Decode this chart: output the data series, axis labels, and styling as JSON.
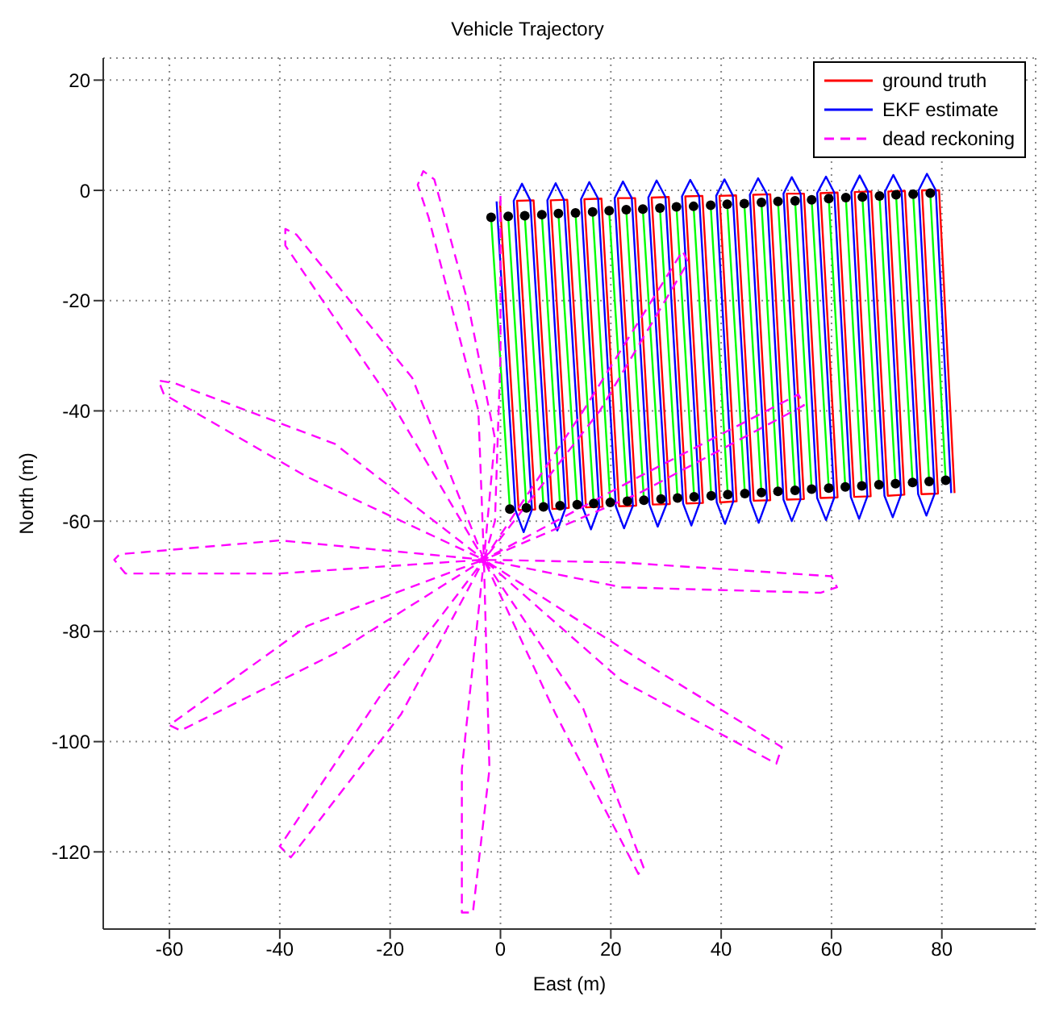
{
  "chart_data": {
    "type": "line",
    "title": "Vehicle Trajectory",
    "xlabel": "East (m)",
    "ylabel": "North (m)",
    "xlim": [
      -72,
      97
    ],
    "ylim": [
      -134,
      24
    ],
    "xticks": [
      -60,
      -40,
      -20,
      0,
      20,
      40,
      60,
      80
    ],
    "yticks": [
      -120,
      -100,
      -80,
      -60,
      -40,
      -20,
      0,
      20
    ],
    "grid": true,
    "legend": "top right",
    "marker": "none",
    "series": [
      {
        "color": "#00ff00",
        "x": [
          -1.7,
          1.7,
          null,
          1.4,
          4.7,
          null,
          4.4,
          7.8,
          null,
          7.5,
          10.8,
          null,
          10.5,
          13.9,
          null,
          13.6,
          16.9,
          null,
          16.7,
          19.9,
          null,
          19.7,
          23.0,
          null,
          22.8,
          26.0,
          null,
          25.8,
          29.1,
          null,
          28.9,
          32.1,
          null,
          31.9,
          35.1,
          null,
          35.0,
          38.2,
          null,
          38.1,
          41.2,
          null,
          41.1,
          44.3,
          null,
          44.2,
          47.3,
          null,
          47.3,
          50.3,
          null,
          50.3,
          53.4,
          null,
          53.4,
          56.4,
          null,
          56.4,
          59.5,
          null,
          59.5,
          62.5,
          null,
          62.6,
          65.5,
          null,
          65.6,
          68.6,
          null,
          68.7,
          71.6,
          null,
          71.7,
          74.7,
          null,
          74.8,
          77.7,
          null,
          77.9,
          80.7
        ],
        "values": [
          -4.9,
          -57.8,
          null,
          -4.7,
          -57.6,
          null,
          -4.6,
          -57.4,
          null,
          -4.4,
          -57.2,
          null,
          -4.2,
          -57.0,
          null,
          -4.1,
          -56.8,
          null,
          -3.9,
          -56.6,
          null,
          -3.7,
          -56.4,
          null,
          -3.5,
          -56.2,
          null,
          -3.4,
          -56.0,
          null,
          -3.2,
          -55.8,
          null,
          -3.0,
          -55.6,
          null,
          -2.9,
          -55.4,
          null,
          -2.7,
          -55.2,
          null,
          -2.5,
          -55.0,
          null,
          -2.4,
          -54.8,
          null,
          -2.2,
          -54.6,
          null,
          -2.0,
          -54.4,
          null,
          -1.9,
          -54.2,
          null,
          -1.7,
          -54.0,
          null,
          -1.5,
          -53.8,
          null,
          -1.3,
          -53.6,
          null,
          -1.2,
          -53.4,
          null,
          -1.0,
          -53.2,
          null,
          -0.8,
          -53.0,
          null,
          -0.7,
          -52.8,
          null,
          -0.5,
          -52.6
        ]
      },
      {
        "name": "ground truth",
        "color": "#ff0000",
        "x": [
          -0.1,
          3.3,
          6.3,
          3.0,
          6.0,
          9.4,
          12.4,
          9.1,
          12.1,
          15.5,
          18.5,
          15.2,
          18.3,
          21.5,
          24.6,
          21.3,
          24.4,
          27.6,
          30.7,
          27.4,
          30.5,
          33.7,
          36.7,
          33.5,
          36.6,
          39.8,
          42.8,
          39.7,
          42.7,
          45.9,
          48.9,
          45.8,
          48.9,
          51.9,
          55.0,
          51.9,
          55.0,
          58.0,
          61.1,
          58.0,
          61.1,
          64.1,
          67.1,
          64.2,
          67.2,
          70.2,
          73.2,
          70.3,
          73.3,
          76.3,
          79.3,
          76.4,
          79.5,
          82.3
        ],
        "values": [
          -2.0,
          -58.0,
          -57.9,
          -1.9,
          -1.8,
          -57.8,
          -57.6,
          -1.8,
          -1.7,
          -57.5,
          -57.4,
          -1.6,
          -1.5,
          -57.3,
          -57.2,
          -1.4,
          -1.4,
          -57.0,
          -56.9,
          -1.3,
          -1.2,
          -56.8,
          -56.7,
          -1.1,
          -1.0,
          -56.6,
          -56.4,
          -1.0,
          -0.9,
          -56.3,
          -56.2,
          -0.8,
          -0.7,
          -56.1,
          -56.0,
          -0.6,
          -0.6,
          -55.8,
          -55.7,
          -0.5,
          -0.4,
          -55.6,
          -55.5,
          -0.3,
          -0.2,
          -55.4,
          -55.2,
          -0.2,
          -0.1,
          -55.1,
          -55.0,
          0.0,
          0.0,
          -54.9
        ]
      },
      {
        "name": "EKF estimate",
        "color": "#0000ff",
        "x": [
          -0.7,
          2.7,
          4.2,
          5.7,
          2.4,
          3.9,
          5.4,
          8.8,
          10.3,
          11.8,
          8.5,
          10.0,
          11.5,
          14.9,
          16.4,
          17.9,
          14.6,
          16.1,
          17.7,
          20.9,
          22.4,
          24.0,
          20.7,
          22.2,
          23.8,
          27.0,
          28.5,
          30.1,
          26.8,
          28.3,
          29.9,
          33.1,
          34.6,
          36.1,
          32.9,
          34.4,
          36.0,
          39.2,
          40.7,
          42.2,
          39.1,
          40.6,
          42.1,
          45.3,
          46.8,
          48.3,
          45.2,
          46.7,
          48.3,
          51.3,
          52.8,
          54.4,
          51.3,
          52.8,
          54.4,
          57.4,
          59.0,
          60.5,
          57.4,
          59.0,
          60.5,
          63.5,
          65.0,
          66.5,
          63.6,
          65.1,
          66.6,
          69.6,
          71.1,
          72.6,
          69.7,
          71.2,
          72.7,
          75.7,
          77.2,
          78.7,
          75.8,
          77.3,
          78.9,
          81.7
        ],
        "values": [
          -2.0,
          -58.0,
          -62.0,
          -57.9,
          -1.9,
          1.2,
          -1.8,
          -57.8,
          -61.7,
          -57.6,
          -1.8,
          1.3,
          -1.7,
          -57.5,
          -61.5,
          -57.4,
          -1.6,
          1.5,
          -1.5,
          -57.3,
          -61.3,
          -57.2,
          -1.4,
          1.6,
          -1.4,
          -57.0,
          -61.0,
          -56.9,
          -1.3,
          1.8,
          -1.2,
          -56.8,
          -60.8,
          -56.7,
          -1.1,
          1.9,
          -1.0,
          -56.6,
          -60.5,
          -56.4,
          -1.0,
          2.0,
          -0.9,
          -56.3,
          -60.3,
          -56.2,
          -0.8,
          2.2,
          -0.7,
          -56.1,
          -60.0,
          -56.0,
          -0.6,
          2.4,
          -0.6,
          -55.8,
          -59.8,
          -55.7,
          -0.5,
          2.5,
          -0.4,
          -55.6,
          -59.6,
          -55.5,
          -0.3,
          2.7,
          -0.2,
          -55.4,
          -59.3,
          -55.2,
          -0.2,
          2.8,
          -0.1,
          -55.1,
          -59.0,
          -55.0,
          0.0,
          3.0,
          0.0,
          -54.9
        ]
      },
      {
        "name": "dead reckoning",
        "color": "#ff00ff",
        "line_style": "dashed",
        "x": [
          0,
          0,
          -1,
          -3,
          -4,
          -13,
          -15,
          -14,
          -12,
          -6,
          -1,
          -3,
          -20,
          -39,
          -39,
          -37,
          -16,
          -3,
          -35,
          -61,
          -62,
          -59,
          -30,
          -3,
          -40,
          -69,
          -70,
          -68,
          -40,
          -3,
          -35,
          -60,
          -58,
          -30,
          -3,
          -22,
          -40,
          -38,
          -18,
          -3,
          -7,
          -7,
          -5,
          -2,
          -3,
          10,
          25,
          26,
          15,
          -3,
          25,
          51,
          50,
          22,
          -3,
          22,
          60,
          61,
          58,
          22,
          -3,
          25,
          54,
          55,
          25,
          -3,
          15,
          33,
          34,
          18,
          -3
        ],
        "values": [
          -1,
          -30,
          -60,
          -67,
          -40,
          -5,
          1,
          3.5,
          2,
          -20,
          -45,
          -67,
          -38,
          -10,
          -7,
          -8,
          -34,
          -67,
          -52,
          -37,
          -34.5,
          -35,
          -46,
          -67,
          -63.5,
          -66,
          -67,
          -69.5,
          -69.5,
          -67,
          -79,
          -97,
          -98,
          -84,
          -67,
          -92,
          -119,
          -121,
          -95,
          -67,
          -105,
          -131,
          -131,
          -105,
          -67,
          -95,
          -124,
          -123,
          -94,
          -67,
          -85,
          -101,
          -104,
          -89,
          -67,
          -67.5,
          -70,
          -72,
          -73,
          -72,
          -67,
          -52,
          -37,
          -39,
          -55,
          -67,
          -40,
          -11,
          -13,
          -40,
          -67
        ]
      },
      {
        "type": "scatter",
        "color": "#000000",
        "marker": "circle",
        "x": [
          -1.7,
          1.4,
          4.4,
          7.5,
          10.5,
          13.6,
          16.7,
          19.7,
          22.8,
          25.8,
          28.9,
          31.9,
          35.0,
          38.1,
          41.1,
          44.2,
          47.3,
          50.3,
          53.4,
          56.4,
          59.5,
          62.6,
          65.6,
          68.7,
          71.7,
          74.8,
          77.9,
          1.7,
          4.7,
          7.8,
          10.8,
          13.9,
          16.9,
          19.9,
          23.0,
          26.0,
          29.1,
          32.1,
          35.1,
          38.2,
          41.2,
          44.3,
          47.3,
          50.3,
          53.4,
          56.4,
          59.5,
          62.5,
          65.5,
          68.6,
          71.6,
          74.7,
          77.7,
          80.7
        ],
        "values": [
          -4.9,
          -4.7,
          -4.6,
          -4.4,
          -4.2,
          -4.1,
          -3.9,
          -3.7,
          -3.5,
          -3.4,
          -3.2,
          -3.0,
          -2.9,
          -2.7,
          -2.5,
          -2.4,
          -2.2,
          -2.0,
          -1.9,
          -1.7,
          -1.5,
          -1.3,
          -1.2,
          -1.0,
          -0.8,
          -0.7,
          -0.5,
          -57.8,
          -57.6,
          -57.4,
          -57.2,
          -57.0,
          -56.8,
          -56.6,
          -56.4,
          -56.2,
          -56.0,
          -55.8,
          -55.6,
          -55.4,
          -55.2,
          -55.0,
          -54.8,
          -54.6,
          -54.4,
          -54.2,
          -54.0,
          -53.8,
          -53.6,
          -53.4,
          -53.2,
          -53.0,
          -52.8,
          -52.6
        ]
      }
    ]
  }
}
